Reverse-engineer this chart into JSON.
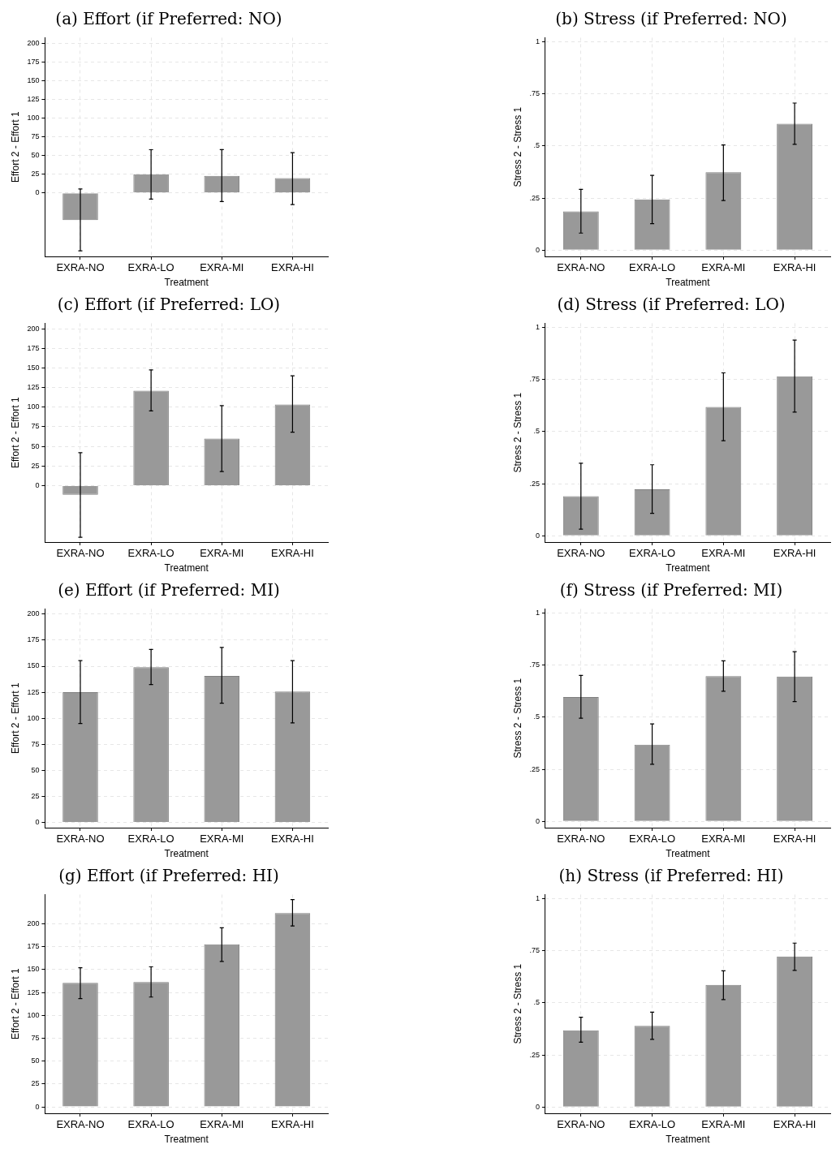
{
  "chart_data": [
    {
      "type": "bar",
      "title": "(a) Effort (if Preferred: NO)",
      "xlabel": "Treatment",
      "ylabel": "Effort 2 - Effort 1",
      "categories": [
        "EXRA-NO",
        "EXRA-LO",
        "EXRA-MI",
        "EXRA-HI"
      ],
      "color": "#999999",
      "values": [
        -36.5,
        25,
        23,
        20
      ],
      "errors": [
        [
          -77.6,
          5.3
        ],
        [
          -8.2,
          57.9
        ],
        [
          -11.5,
          58
        ],
        [
          -15.6,
          54
        ]
      ],
      "ylim": [
        -85,
        208
      ],
      "yticks": [
        0,
        25,
        50,
        75,
        100,
        125,
        150,
        175,
        200
      ],
      "grid": true
    },
    {
      "type": "bar",
      "title": "(b) Stress (if Preferred: NO)",
      "xlabel": "Treatment",
      "ylabel": "Stress 2 - Stress 1",
      "categories": [
        "EXRA-NO",
        "EXRA-LO",
        "EXRA-MI",
        "EXRA-HI"
      ],
      "color": "#999999",
      "values": [
        0.186,
        0.244,
        0.374,
        0.607
      ],
      "errors": [
        [
          0.082,
          0.292
        ],
        [
          0.127,
          0.359
        ],
        [
          0.238,
          0.505
        ],
        [
          0.508,
          0.706
        ]
      ],
      "ylim": [
        -0.03,
        1.02
      ],
      "yticks": [
        0,
        {
          "value": 0.25,
          "label": ".25"
        },
        {
          "value": 0.5,
          "label": ".5"
        },
        {
          "value": 0.75,
          "label": ".75"
        },
        1
      ],
      "grid": true
    },
    {
      "type": "bar",
      "title": "(c) Effort (if Preferred: LO)",
      "xlabel": "Treatment",
      "ylabel": "Effort 2 - Effort 1",
      "categories": [
        "EXRA-NO",
        "EXRA-LO",
        "EXRA-MI",
        "EXRA-HI"
      ],
      "color": "#999999",
      "values": [
        -11.8,
        121,
        60,
        103.5
      ],
      "errors": [
        [
          -66,
          42
        ],
        [
          95.3,
          147.5
        ],
        [
          18,
          102
        ],
        [
          68,
          140
        ]
      ],
      "ylim": [
        -72,
        207
      ],
      "yticks": [
        0,
        25,
        50,
        75,
        100,
        125,
        150,
        175,
        200
      ],
      "grid": true
    },
    {
      "type": "bar",
      "title": "(d) Stress (if Preferred: LO)",
      "xlabel": "Treatment",
      "ylabel": "Stress 2 - Stress 1",
      "categories": [
        "EXRA-NO",
        "EXRA-LO",
        "EXRA-MI",
        "EXRA-HI"
      ],
      "color": "#999999",
      "values": [
        0.19,
        0.223,
        0.618,
        0.765
      ],
      "errors": [
        [
          0.032,
          0.348
        ],
        [
          0.108,
          0.341
        ],
        [
          0.456,
          0.782
        ],
        [
          0.594,
          0.939
        ]
      ],
      "ylim": [
        -0.03,
        1.02
      ],
      "yticks": [
        0,
        {
          "value": 0.25,
          "label": ".25"
        },
        {
          "value": 0.5,
          "label": ".5"
        },
        {
          "value": 0.75,
          "label": ".75"
        },
        1
      ],
      "grid": true
    },
    {
      "type": "bar",
      "title": "(e) Effort (if Preferred: MI)",
      "xlabel": "Treatment",
      "ylabel": "Effort 2 - Effort 1",
      "categories": [
        "EXRA-NO",
        "EXRA-LO",
        "EXRA-MI",
        "EXRA-HI"
      ],
      "color": "#999999",
      "values": [
        125,
        149,
        140.6,
        125.6
      ],
      "errors": [
        [
          95,
          155.3
        ],
        [
          132.4,
          166
        ],
        [
          114.4,
          168
        ],
        [
          95.6,
          155.3
        ]
      ],
      "ylim": [
        -5,
        205
      ],
      "yticks": [
        0,
        25,
        50,
        75,
        100,
        125,
        150,
        175,
        200
      ],
      "grid": true
    },
    {
      "type": "bar",
      "title": "(f) Stress (if Preferred: MI)",
      "xlabel": "Treatment",
      "ylabel": "Stress 2 - Stress 1",
      "categories": [
        "EXRA-NO",
        "EXRA-LO",
        "EXRA-MI",
        "EXRA-HI"
      ],
      "color": "#999999",
      "values": [
        0.597,
        0.368,
        0.697,
        0.695
      ],
      "errors": [
        [
          0.495,
          0.701
        ],
        [
          0.274,
          0.468
        ],
        [
          0.625,
          0.771
        ],
        [
          0.575,
          0.815
        ]
      ],
      "ylim": [
        -0.03,
        1.02
      ],
      "yticks": [
        0,
        {
          "value": 0.25,
          "label": ".25"
        },
        {
          "value": 0.5,
          "label": ".5"
        },
        {
          "value": 0.75,
          "label": ".75"
        },
        1
      ],
      "grid": true
    },
    {
      "type": "bar",
      "title": "(g) Effort (if Preferred: HI)",
      "xlabel": "Treatment",
      "ylabel": "Effort 2 - Effort 1",
      "categories": [
        "EXRA-NO",
        "EXRA-LO",
        "EXRA-MI",
        "EXRA-HI"
      ],
      "color": "#999999",
      "values": [
        135.5,
        136.5,
        177.6,
        211.7
      ],
      "errors": [
        [
          118.4,
          152
        ],
        [
          120,
          153
        ],
        [
          158.9,
          195.6
        ],
        [
          197.7,
          226.4
        ]
      ],
      "ylim": [
        -7,
        232
      ],
      "yticks": [
        0,
        25,
        50,
        75,
        100,
        125,
        150,
        175,
        200
      ],
      "grid": true
    },
    {
      "type": "bar",
      "title": "(h) Stress (if Preferred: HI)",
      "xlabel": "Treatment",
      "ylabel": "Stress 2 - Stress 1",
      "categories": [
        "EXRA-NO",
        "EXRA-LO",
        "EXRA-MI",
        "EXRA-HI"
      ],
      "color": "#999999",
      "values": [
        0.368,
        0.39,
        0.586,
        0.723
      ],
      "errors": [
        [
          0.311,
          0.431
        ],
        [
          0.325,
          0.455
        ],
        [
          0.516,
          0.654
        ],
        [
          0.656,
          0.787
        ]
      ],
      "ylim": [
        -0.03,
        1.02
      ],
      "yticks": [
        0,
        {
          "value": 0.25,
          "label": ".25"
        },
        {
          "value": 0.5,
          "label": ".5"
        },
        {
          "value": 0.75,
          "label": ".75"
        },
        1
      ],
      "grid": true
    }
  ]
}
